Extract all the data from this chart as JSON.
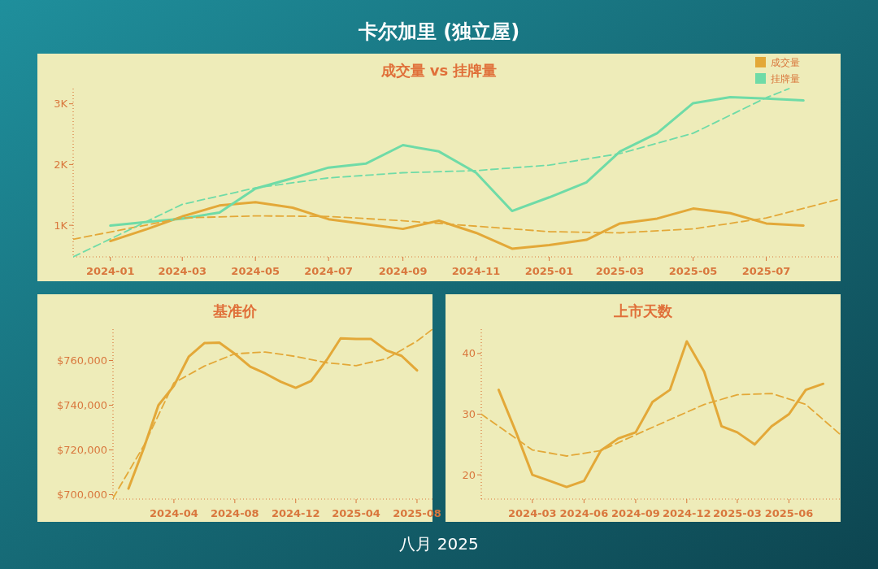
{
  "chart_data": [
    {
      "type": "other",
      "title": "卡尔加里 (独立屋)",
      "annotations": [
        "八月 2025"
      ]
    },
    {
      "type": "line",
      "title": "成交量 vs 挂牌量",
      "legend": "top right",
      "x": [
        "2024-01",
        "2024-02",
        "2024-03",
        "2024-04",
        "2024-05",
        "2024-06",
        "2024-07",
        "2024-08",
        "2024-09",
        "2024-10",
        "2024-11",
        "2024-12",
        "2025-01",
        "2025-02",
        "2025-03",
        "2025-04",
        "2025-05",
        "2025-06",
        "2025-07",
        "2025-08"
      ],
      "series": [
        {
          "name": "成交量",
          "color": "#e3a838",
          "values": [
            740,
            940,
            1145,
            1325,
            1380,
            1290,
            1100,
            1020,
            940,
            1075,
            875,
            615,
            675,
            760,
            1030,
            1110,
            1275,
            1200,
            1030,
            995
          ]
        },
        {
          "name": "挂牌量",
          "color": "#6fdba7",
          "values": [
            995,
            1055,
            1110,
            1210,
            1605,
            1775,
            1950,
            2015,
            2320,
            2215,
            1865,
            1235,
            1460,
            1705,
            2215,
            2515,
            3010,
            3110,
            3085,
            3055
          ]
        },
        {
          "color": "#e3a838",
          "line_style": "dashed",
          "x": [
            "2023-12",
            "2024-03",
            "2024-05",
            "2024-07",
            "2024-09",
            "2024-11",
            "2025-01",
            "2025-03",
            "2025-05",
            "2025-07",
            "2025-09"
          ],
          "values": [
            770,
            1120,
            1155,
            1145,
            1075,
            985,
            895,
            875,
            940,
            1120,
            1435
          ]
        },
        {
          "color": "#6fdba7",
          "line_style": "dashed",
          "x": [
            "2023-12",
            "2024-03",
            "2024-05",
            "2024-07",
            "2024-09",
            "2024-11",
            "2025-01",
            "2025-03",
            "2025-05",
            "2025-07",
            "2025-07-20"
          ],
          "values": [
            480,
            1345,
            1615,
            1780,
            1865,
            1900,
            1990,
            2180,
            2515,
            3100,
            3250
          ]
        }
      ],
      "xlim": [
        "2023-12",
        "2025-09"
      ],
      "xticks": [
        "2024-01",
        "2024-03",
        "2024-05",
        "2024-07",
        "2024-09",
        "2024-11",
        "2025-01",
        "2025-03",
        "2025-05",
        "2025-07"
      ],
      "ylim": [
        480,
        3250
      ],
      "yticks": [
        {
          "value": 1000,
          "label": "1K"
        },
        {
          "value": 2000,
          "label": "2K"
        },
        {
          "value": 3000,
          "label": "3K"
        }
      ]
    },
    {
      "type": "line",
      "title": "基准价",
      "x": [
        "2024-01",
        "2024-02",
        "2024-03",
        "2024-04",
        "2024-05",
        "2024-06",
        "2024-07",
        "2024-08",
        "2024-09",
        "2024-10",
        "2024-11",
        "2024-12",
        "2025-01",
        "2025-02",
        "2025-03",
        "2025-04",
        "2025-05",
        "2025-06",
        "2025-07",
        "2025-08"
      ],
      "series": [
        {
          "color": "#e3a838",
          "values": [
            702700,
            721000,
            740000,
            748700,
            761800,
            767800,
            768000,
            763000,
            757200,
            754200,
            750500,
            747800,
            750900,
            760200,
            769900,
            769600,
            769600,
            764500,
            762100,
            755600
          ]
        },
        {
          "color": "#e3a838",
          "line_style": "dashed",
          "x": [
            "2023-12",
            "2024-02",
            "2024-04",
            "2024-06",
            "2024-08",
            "2024-10",
            "2024-12",
            "2025-02",
            "2025-04",
            "2025-06",
            "2025-08",
            "2025-09"
          ],
          "values": [
            698400,
            722000,
            750000,
            757500,
            763000,
            763800,
            761800,
            759000,
            757700,
            760800,
            768700,
            774000
          ]
        }
      ],
      "xlim": [
        "2023-12",
        "2025-09"
      ],
      "xticks": [
        "2024-04",
        "2024-08",
        "2024-12",
        "2025-04",
        "2025-08"
      ],
      "ylim": [
        698000,
        774000
      ],
      "yticks": [
        {
          "value": 700000,
          "label": "$700,000"
        },
        {
          "value": 720000,
          "label": "$720,000"
        },
        {
          "value": 740000,
          "label": "$740,000"
        },
        {
          "value": 760000,
          "label": "$760,000"
        }
      ]
    },
    {
      "type": "line",
      "title": "上市天数",
      "x": [
        "2024-01",
        "2024-02",
        "2024-03",
        "2024-04",
        "2024-05",
        "2024-06",
        "2024-07",
        "2024-08",
        "2024-09",
        "2024-10",
        "2024-11",
        "2024-12",
        "2025-01",
        "2025-02",
        "2025-03",
        "2025-04",
        "2025-05",
        "2025-06",
        "2025-07",
        "2025-08"
      ],
      "series": [
        {
          "color": "#e3a838",
          "values": [
            34,
            27,
            20,
            19,
            18,
            19,
            24,
            26,
            27,
            32,
            34,
            42,
            37,
            28,
            27,
            25,
            28,
            30,
            34,
            35
          ]
        },
        {
          "color": "#e3a838",
          "line_style": "dashed",
          "x": [
            "2023-12",
            "2024-03",
            "2024-05",
            "2024-07",
            "2024-09",
            "2024-11",
            "2025-01",
            "2025-03",
            "2025-05",
            "2025-07",
            "2025-09"
          ],
          "values": [
            30,
            24.1,
            23.1,
            24,
            26.6,
            29.1,
            31.6,
            33.2,
            33.4,
            31.6,
            26.6
          ]
        }
      ],
      "xlim": [
        "2023-12",
        "2025-09"
      ],
      "xticks": [
        "2024-03",
        "2024-06",
        "2024-09",
        "2024-12",
        "2025-03",
        "2025-06"
      ],
      "ylim": [
        16,
        44
      ],
      "yticks": [
        20,
        30,
        40
      ]
    }
  ]
}
